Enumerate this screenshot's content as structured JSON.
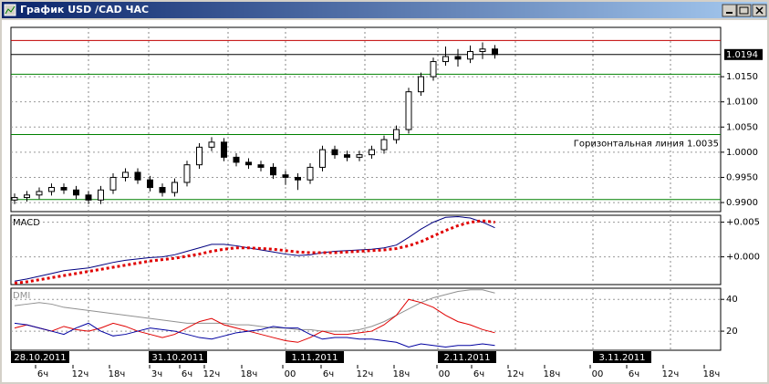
{
  "window": {
    "title": "График USD /CAD ЧАС"
  },
  "chart_data": [
    {
      "type": "candlestick",
      "ylim": [
        0.9882,
        1.0248
      ],
      "yticks": [
        {
          "value": 1.015,
          "label": "1.0150"
        },
        {
          "value": 1.01,
          "label": "1.0100"
        },
        {
          "value": 1.005,
          "label": "1.0050"
        },
        {
          "value": 1,
          "label": "1.0000"
        },
        {
          "value": 0.995,
          "label": "0.9950"
        },
        {
          "value": 0.99,
          "label": "0.9900"
        }
      ],
      "current_price": {
        "value": 1.0194,
        "label": "1.0194"
      },
      "hlines": [
        {
          "value": 1.0222,
          "color": "#c00000"
        },
        {
          "value": 1.0155,
          "color": "#008000"
        },
        {
          "value": 1.0035,
          "color": "#008000",
          "label": "Горизонтальная линия 1.0035"
        },
        {
          "value": 0.9906,
          "color": "#008000"
        }
      ],
      "open": [
        0.9905,
        0.991,
        0.9915,
        0.9922,
        0.993,
        0.9925,
        0.9915,
        0.9905,
        0.9925,
        0.995,
        0.996,
        0.9945,
        0.993,
        0.992,
        0.994,
        0.9975,
        1.001,
        1.002,
        0.999,
        0.998,
        0.9975,
        0.997,
        0.9955,
        0.995,
        0.9945,
        0.997,
        1.0005,
        0.9995,
        0.999,
        0.9995,
        1.0005,
        1.0025,
        1.0045,
        1.012,
        1.015,
        1.018,
        1.019,
        1.0185,
        1.02,
        1.0205
      ],
      "high": [
        0.9918,
        0.9923,
        0.993,
        0.9938,
        0.9938,
        0.9933,
        0.9923,
        0.9933,
        0.9958,
        0.9968,
        0.9968,
        0.9953,
        0.9938,
        0.9948,
        0.9983,
        1.0018,
        1.003,
        1.0028,
        0.9998,
        0.9988,
        0.9983,
        0.9978,
        0.9963,
        0.9958,
        0.9978,
        1.0013,
        1.0013,
        1.0003,
        1.0003,
        1.0013,
        1.0033,
        1.0053,
        1.0128,
        1.0158,
        1.0188,
        1.021,
        1.0205,
        1.0212,
        1.0218,
        1.0213
      ],
      "low": [
        0.9897,
        0.9902,
        0.9907,
        0.9914,
        0.9917,
        0.9907,
        0.9897,
        0.9897,
        0.9917,
        0.9942,
        0.9937,
        0.9922,
        0.9912,
        0.9912,
        0.9932,
        0.9967,
        1.0002,
        0.9982,
        0.9972,
        0.9967,
        0.9962,
        0.9947,
        0.9935,
        0.9925,
        0.9937,
        0.9962,
        0.9987,
        0.9982,
        0.9982,
        0.9987,
        0.9997,
        1.0017,
        1.0037,
        1.0112,
        1.0142,
        1.0172,
        1.017,
        1.0177,
        1.0185,
        1.0186
      ],
      "close": [
        0.991,
        0.9915,
        0.9922,
        0.993,
        0.9925,
        0.9915,
        0.9905,
        0.9925,
        0.995,
        0.996,
        0.9945,
        0.993,
        0.992,
        0.994,
        0.9975,
        1.001,
        1.002,
        0.999,
        0.998,
        0.9975,
        0.997,
        0.9955,
        0.995,
        0.9945,
        0.997,
        1.0005,
        0.9995,
        0.999,
        0.9995,
        1.0005,
        1.0025,
        1.0045,
        1.012,
        1.015,
        1.018,
        1.019,
        1.0185,
        1.02,
        1.0205,
        1.0194
      ]
    },
    {
      "type": "line",
      "title": "MACD",
      "ylim": [
        -0.004,
        0.006
      ],
      "yticks": [
        {
          "value": 0.005,
          "label": "+0.005"
        },
        {
          "value": 0,
          "label": "+0.000"
        }
      ],
      "series": [
        {
          "color": "#000080",
          "style": "solid",
          "values": [
            -0.0035,
            -0.0032,
            -0.0028,
            -0.0024,
            -0.002,
            -0.0018,
            -0.0016,
            -0.0012,
            -0.0008,
            -0.0005,
            -0.0003,
            -0.0001,
            0.0,
            0.0003,
            0.0008,
            0.0013,
            0.0018,
            0.0018,
            0.0016,
            0.0013,
            0.001,
            0.0007,
            0.0004,
            0.0002,
            0.0003,
            0.0006,
            0.0008,
            0.0009,
            0.001,
            0.0011,
            0.0013,
            0.0017,
            0.0028,
            0.004,
            0.005,
            0.0057,
            0.0058,
            0.0056,
            0.005,
            0.0042
          ]
        },
        {
          "color": "#e00000",
          "style": "dotted",
          "values": [
            -0.0038,
            -0.0036,
            -0.0033,
            -0.003,
            -0.0027,
            -0.0024,
            -0.0021,
            -0.0018,
            -0.0015,
            -0.0012,
            -0.0009,
            -0.0006,
            -0.0004,
            -0.0002,
            0.0001,
            0.0004,
            0.0008,
            0.0011,
            0.0013,
            0.0013,
            0.0012,
            0.0011,
            0.0009,
            0.0007,
            0.0006,
            0.0006,
            0.0006,
            0.0007,
            0.0008,
            0.0009,
            0.001,
            0.0012,
            0.0016,
            0.0022,
            0.003,
            0.0038,
            0.0045,
            0.005,
            0.0052,
            0.005
          ]
        }
      ]
    },
    {
      "type": "line",
      "title": "DMI",
      "ylim": [
        8,
        47
      ],
      "yticks": [
        40,
        20
      ],
      "series": [
        {
          "color": "#909090",
          "style": "solid",
          "values": [
            36,
            37,
            38,
            37,
            35,
            34,
            33,
            32,
            31,
            30,
            29,
            28,
            27,
            26,
            25,
            25,
            25,
            25,
            24,
            24,
            23,
            22,
            22,
            21,
            21,
            20,
            20,
            20,
            21,
            23,
            26,
            30,
            34,
            38,
            41,
            43,
            45,
            46,
            46,
            44
          ]
        },
        {
          "color": "#e00000",
          "style": "solid",
          "values": [
            22,
            24,
            22,
            20,
            23,
            21,
            20,
            22,
            25,
            23,
            20,
            18,
            16,
            18,
            22,
            26,
            28,
            24,
            22,
            20,
            18,
            16,
            14,
            13,
            16,
            20,
            18,
            18,
            19,
            20,
            24,
            30,
            40,
            38,
            35,
            30,
            26,
            24,
            21,
            19
          ]
        },
        {
          "color": "#0000a0",
          "style": "solid",
          "values": [
            25,
            24,
            22,
            20,
            18,
            22,
            25,
            20,
            17,
            18,
            20,
            22,
            21,
            20,
            18,
            16,
            15,
            17,
            19,
            20,
            21,
            23,
            22,
            22,
            18,
            15,
            16,
            16,
            15,
            15,
            14,
            13,
            10,
            12,
            11,
            10,
            11,
            11,
            12,
            11
          ]
        }
      ]
    }
  ],
  "time_axis": {
    "dates": [
      "28.10.2011",
      "31.10.2011",
      "1.11.2011",
      "2.11.2011",
      "3.11.2011"
    ],
    "hours": [
      "6ч",
      "12ч",
      "18ч",
      "3ч",
      "6ч",
      "12ч",
      "18ч",
      "00",
      "6ч",
      "12ч",
      "18ч",
      "00",
      "6ч",
      "12ч",
      "18ч",
      "00",
      "6ч",
      "12ч",
      "18ч"
    ]
  }
}
